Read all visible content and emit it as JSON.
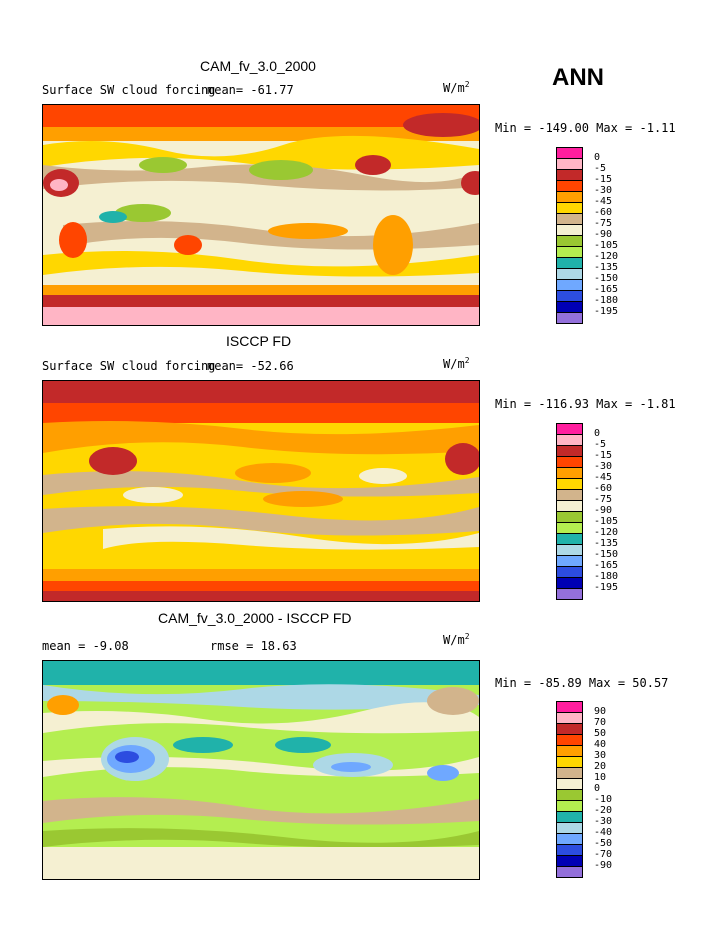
{
  "season": "ANN",
  "unit": "W/m",
  "unit_sup": "2",
  "colors": {
    "abs": [
      "#ff1e9e",
      "#ffb5c5",
      "#c22929",
      "#ff4500",
      "#ff9f00",
      "#ffd700",
      "#d2b48c",
      "#f5f0d2",
      "#9ac832",
      "#b4ee50",
      "#20b2aa",
      "#add8e6",
      "#6fa8ff",
      "#2c4de0",
      "#0000b4",
      "#9370db"
    ],
    "diff": [
      "#ff1e9e",
      "#ffb5c5",
      "#c22929",
      "#ff4500",
      "#ff9f00",
      "#ffd700",
      "#d2b48c",
      "#f5f0d2",
      "#9ac832",
      "#b4ee50",
      "#20b2aa",
      "#add8e6",
      "#6fa8ff",
      "#2c4de0",
      "#0000b4",
      "#9370db"
    ]
  },
  "panels": [
    {
      "title": "CAM_fv_3.0_2000",
      "left_label": "Surface SW cloud forcing",
      "mean_label": "mean= -61.77",
      "minmax": "Min = -149.00 Max =  -1.11",
      "levels": [
        "0",
        "-5",
        "-15",
        "-30",
        "-45",
        "-60",
        "-75",
        "-90",
        "-105",
        "-120",
        "-135",
        "-150",
        "-165",
        "-180",
        "-195"
      ]
    },
    {
      "title": "ISCCP FD",
      "left_label": "Surface SW cloud forcing",
      "mean_label": "mean= -52.66",
      "minmax": "Min = -116.93 Max =  -1.81",
      "levels": [
        "0",
        "-5",
        "-15",
        "-30",
        "-45",
        "-60",
        "-75",
        "-90",
        "-105",
        "-120",
        "-135",
        "-150",
        "-165",
        "-180",
        "-195"
      ]
    },
    {
      "title": "CAM_fv_3.0_2000 - ISCCP FD",
      "left_label": "mean =  -9.08",
      "mean_label": "rmse =  18.63",
      "minmax": "Min = -85.89 Max =  50.57",
      "levels": [
        "90",
        "70",
        "50",
        "40",
        "30",
        "20",
        "10",
        "0",
        "-10",
        "-20",
        "-30",
        "-40",
        "-50",
        "-70",
        "-90"
      ]
    }
  ]
}
